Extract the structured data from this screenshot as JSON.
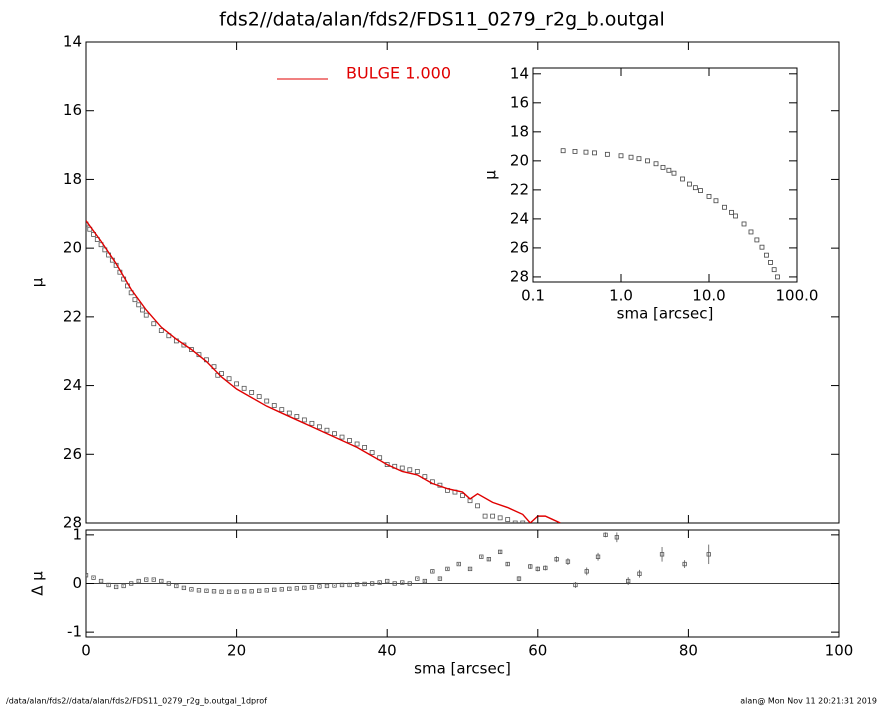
{
  "chart_data": [
    {
      "type": "scatter",
      "title": "fds2//data/alan/fds2/FDS11_0279_r2g_b.outgal",
      "ylabel": "μ",
      "xlim": [
        0,
        100
      ],
      "ylim": [
        28,
        14
      ],
      "yticks": [
        14,
        16,
        18,
        20,
        22,
        24,
        26,
        28
      ],
      "points": {
        "color": "#555555",
        "x": [
          0,
          0.5,
          1,
          1.5,
          2,
          2.5,
          3,
          3.5,
          4,
          4.5,
          5,
          5.5,
          6,
          6.5,
          7,
          7.5,
          8,
          9,
          10,
          11,
          12,
          13,
          14,
          15,
          16,
          17,
          17.5,
          18,
          19,
          20,
          21,
          22,
          23,
          24,
          25,
          26,
          27,
          28,
          29,
          30,
          31,
          32,
          33,
          34,
          35,
          36,
          37,
          38,
          39,
          40,
          41,
          42,
          43,
          44,
          45,
          46,
          47,
          48,
          49,
          50,
          51,
          52,
          53,
          54,
          55,
          56,
          57,
          58
        ],
        "values": [
          19.3,
          19.45,
          19.6,
          19.75,
          19.9,
          20.05,
          20.2,
          20.35,
          20.5,
          20.7,
          20.9,
          21.1,
          21.3,
          21.5,
          21.65,
          21.8,
          21.95,
          22.2,
          22.4,
          22.55,
          22.7,
          22.82,
          22.95,
          23.1,
          23.25,
          23.45,
          23.7,
          23.65,
          23.8,
          23.95,
          24.08,
          24.2,
          24.32,
          24.45,
          24.58,
          24.7,
          24.8,
          24.9,
          25.0,
          25.1,
          25.2,
          25.3,
          25.4,
          25.5,
          25.6,
          25.7,
          25.8,
          25.95,
          26.1,
          26.3,
          26.35,
          26.4,
          26.45,
          26.5,
          26.65,
          26.8,
          26.9,
          27.05,
          27.1,
          27.2,
          27.35,
          27.5,
          27.8,
          27.8,
          27.85,
          27.9,
          28.0,
          28.0
        ]
      },
      "series": [
        {
          "name": "BULGE  1.000",
          "color": "#e00000",
          "x": [
            0,
            2,
            4,
            6,
            8,
            10,
            12,
            14,
            16,
            18,
            20,
            22,
            24,
            26,
            28,
            30,
            32,
            34,
            36,
            38,
            40,
            42,
            44,
            46,
            48,
            50,
            51,
            52,
            54,
            56,
            58,
            59,
            60,
            61,
            62,
            63
          ],
          "values": [
            19.2,
            19.8,
            20.45,
            21.2,
            21.8,
            22.3,
            22.65,
            22.95,
            23.3,
            23.75,
            24.1,
            24.35,
            24.6,
            24.8,
            25.0,
            25.2,
            25.4,
            25.6,
            25.8,
            26.05,
            26.3,
            26.5,
            26.6,
            26.85,
            27.0,
            27.1,
            27.3,
            27.15,
            27.4,
            27.55,
            27.75,
            28.0,
            27.8,
            27.8,
            27.9,
            28.0
          ]
        }
      ]
    },
    {
      "type": "residual",
      "xlabel": "sma [arcsec]",
      "ylabel": "Δ μ",
      "xlim": [
        0,
        100
      ],
      "xticks": [
        0,
        20,
        40,
        60,
        80,
        100
      ],
      "ylim": [
        -1.1,
        1.1
      ],
      "yticks": [
        -1,
        0,
        1
      ],
      "color": "#555555",
      "x": [
        0,
        1,
        2,
        3,
        4,
        5,
        6,
        7,
        8,
        9,
        10,
        11,
        12,
        13,
        14,
        15,
        16,
        17,
        18,
        19,
        20,
        21,
        22,
        23,
        24,
        25,
        26,
        27,
        28,
        29,
        30,
        31,
        32,
        33,
        34,
        35,
        36,
        37,
        38,
        39,
        40,
        41,
        42,
        43,
        44,
        45,
        46,
        47,
        48,
        49.5,
        51,
        52.5,
        53.5,
        55,
        56,
        57.5,
        59,
        60,
        61,
        62.5,
        64,
        65,
        66.5,
        68,
        69,
        70.5,
        72,
        73.5,
        76.5,
        79.5,
        82.7
      ],
      "values": [
        0.17,
        0.12,
        0.05,
        -0.03,
        -0.07,
        -0.05,
        0.0,
        0.05,
        0.08,
        0.08,
        0.05,
        0.0,
        -0.05,
        -0.09,
        -0.12,
        -0.14,
        -0.15,
        -0.16,
        -0.17,
        -0.17,
        -0.17,
        -0.16,
        -0.16,
        -0.15,
        -0.14,
        -0.13,
        -0.12,
        -0.11,
        -0.1,
        -0.09,
        -0.08,
        -0.06,
        -0.05,
        -0.04,
        -0.03,
        -0.03,
        -0.02,
        -0.01,
        0.0,
        0.02,
        0.05,
        0.0,
        0.02,
        0.0,
        0.1,
        0.05,
        0.25,
        0.1,
        0.3,
        0.4,
        0.3,
        0.55,
        0.5,
        0.65,
        0.4,
        0.1,
        0.35,
        0.3,
        0.32,
        0.5,
        0.45,
        -0.03,
        0.25,
        0.55,
        1.0,
        0.95,
        0.05,
        0.2,
        0.6,
        0.4,
        0.6
      ],
      "errors": [
        0.01,
        0.01,
        0.01,
        0.01,
        0.01,
        0.01,
        0.01,
        0.01,
        0.01,
        0.01,
        0.01,
        0.01,
        0.01,
        0.01,
        0.01,
        0.01,
        0.01,
        0.01,
        0.01,
        0.01,
        0.01,
        0.01,
        0.01,
        0.01,
        0.01,
        0.01,
        0.01,
        0.01,
        0.01,
        0.01,
        0.01,
        0.01,
        0.01,
        0.01,
        0.01,
        0.01,
        0.01,
        0.01,
        0.01,
        0.01,
        0.01,
        0.01,
        0.01,
        0.01,
        0.01,
        0.02,
        0.02,
        0.02,
        0.02,
        0.02,
        0.02,
        0.02,
        0.03,
        0.04,
        0.04,
        0.05,
        0.05,
        0.05,
        0.05,
        0.06,
        0.07,
        0.06,
        0.08,
        0.08,
        0.05,
        0.1,
        0.08,
        0.08,
        0.15,
        0.08,
        0.2
      ]
    },
    {
      "type": "inset",
      "xlabel": "sma [arcsec]",
      "ylabel": "μ",
      "log_x": true,
      "xlim": [
        0.1,
        100
      ],
      "xticks": [
        0.1,
        {
          "value": 1,
          "label": "1.0"
        },
        {
          "value": 10,
          "label": "10.0"
        },
        {
          "value": 100,
          "label": "100.0"
        }
      ],
      "ylim": [
        28.35,
        13.6
      ],
      "yticks": [
        14,
        16,
        18,
        20,
        22,
        24,
        26,
        28
      ],
      "color": "#444444",
      "x": [
        0.22,
        0.3,
        0.4,
        0.5,
        0.7,
        1.0,
        1.3,
        1.6,
        2.0,
        2.5,
        3.0,
        3.5,
        4.0,
        5.0,
        6.0,
        7.0,
        8.0,
        10,
        12,
        15,
        18,
        20,
        25,
        30,
        35,
        40,
        45,
        50,
        55,
        60
      ],
      "values": [
        19.3,
        19.35,
        19.4,
        19.45,
        19.55,
        19.65,
        19.75,
        19.85,
        20.0,
        20.2,
        20.45,
        20.65,
        20.85,
        21.25,
        21.6,
        21.85,
        22.05,
        22.45,
        22.75,
        23.2,
        23.55,
        23.8,
        24.35,
        24.9,
        25.45,
        25.95,
        26.5,
        27.0,
        27.5,
        28.0
      ]
    }
  ],
  "footer": {
    "left": "/data/alan/fds2//data/alan/fds2/FDS11_0279_r2g_b.outgal_1dprof",
    "right": "alan@  Mon Nov 11 20:21:31 2019"
  }
}
